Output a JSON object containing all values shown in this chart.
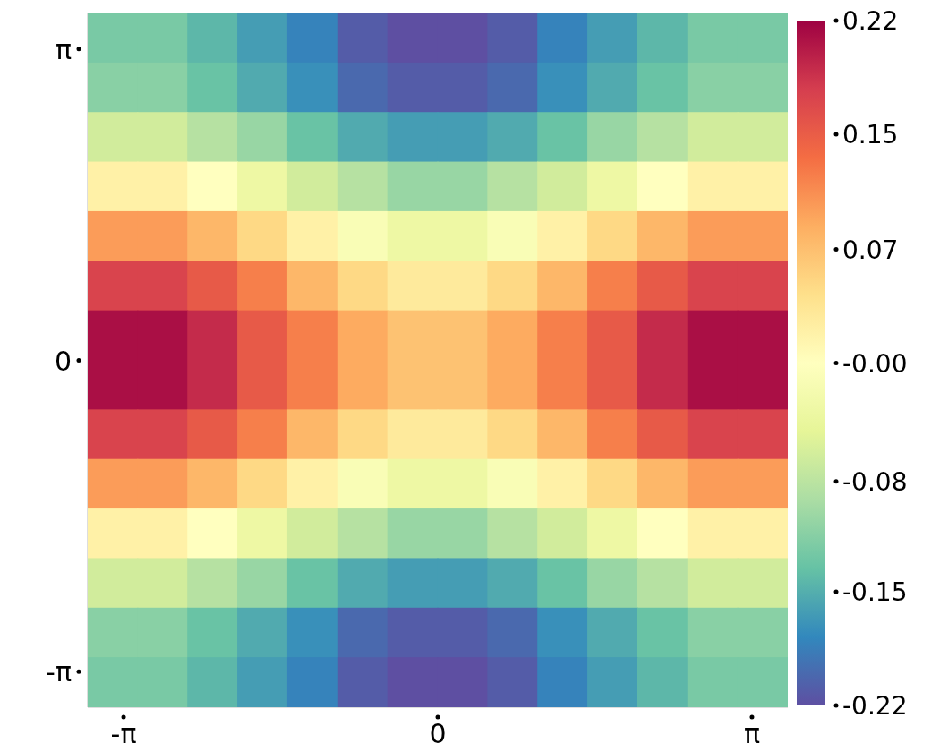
{
  "chart_data": {
    "type": "heatmap",
    "x": [
      -3.25,
      -2.75,
      -2.25,
      -1.75,
      -1.25,
      -0.75,
      -0.25,
      0.25,
      0.75,
      1.25,
      1.75,
      2.25,
      2.75,
      3.25
    ],
    "y": [
      3.25,
      2.75,
      2.25,
      1.75,
      1.25,
      0.75,
      0.25,
      -0.25,
      -0.75,
      -1.25,
      -1.75,
      -2.25,
      -2.75,
      -3.25
    ],
    "cells": [
      [
        -0.12,
        -0.12,
        -0.14,
        -0.16,
        -0.18,
        -0.21,
        -0.22,
        -0.22,
        -0.21,
        -0.18,
        -0.16,
        -0.14,
        -0.12,
        -0.12
      ],
      [
        -0.11,
        -0.11,
        -0.13,
        -0.15,
        -0.17,
        -0.2,
        -0.21,
        -0.21,
        -0.2,
        -0.17,
        -0.15,
        -0.13,
        -0.11,
        -0.11
      ],
      [
        -0.06,
        -0.06,
        -0.08,
        -0.1,
        -0.13,
        -0.15,
        -0.16,
        -0.16,
        -0.15,
        -0.13,
        -0.1,
        -0.08,
        -0.06,
        -0.06
      ],
      [
        0.02,
        0.02,
        0.0,
        -0.03,
        -0.06,
        -0.08,
        -0.1,
        -0.1,
        -0.08,
        -0.06,
        -0.03,
        0.0,
        0.02,
        0.02
      ],
      [
        0.1,
        0.1,
        0.08,
        0.05,
        0.02,
        -0.01,
        -0.03,
        -0.03,
        -0.01,
        0.02,
        0.05,
        0.08,
        0.1,
        0.1
      ],
      [
        0.17,
        0.17,
        0.15,
        0.12,
        0.08,
        0.05,
        0.03,
        0.03,
        0.05,
        0.08,
        0.12,
        0.15,
        0.17,
        0.17
      ],
      [
        0.21,
        0.21,
        0.19,
        0.15,
        0.12,
        0.09,
        0.07,
        0.07,
        0.09,
        0.12,
        0.15,
        0.19,
        0.21,
        0.21
      ],
      [
        0.21,
        0.21,
        0.19,
        0.15,
        0.12,
        0.09,
        0.07,
        0.07,
        0.09,
        0.12,
        0.15,
        0.19,
        0.21,
        0.21
      ],
      [
        0.17,
        0.17,
        0.15,
        0.12,
        0.08,
        0.05,
        0.03,
        0.03,
        0.05,
        0.08,
        0.12,
        0.15,
        0.17,
        0.17
      ],
      [
        0.1,
        0.1,
        0.08,
        0.05,
        0.02,
        -0.01,
        -0.03,
        -0.03,
        -0.01,
        0.02,
        0.05,
        0.08,
        0.1,
        0.1
      ],
      [
        0.02,
        0.02,
        0.0,
        -0.03,
        -0.06,
        -0.08,
        -0.1,
        -0.1,
        -0.08,
        -0.06,
        -0.03,
        0.0,
        0.02,
        0.02
      ],
      [
        -0.06,
        -0.06,
        -0.08,
        -0.1,
        -0.13,
        -0.15,
        -0.16,
        -0.16,
        -0.15,
        -0.13,
        -0.1,
        -0.08,
        -0.06,
        -0.06
      ],
      [
        -0.11,
        -0.11,
        -0.13,
        -0.15,
        -0.17,
        -0.2,
        -0.21,
        -0.21,
        -0.2,
        -0.17,
        -0.15,
        -0.13,
        -0.11,
        -0.11
      ],
      [
        -0.12,
        -0.12,
        -0.14,
        -0.16,
        -0.18,
        -0.21,
        -0.22,
        -0.22,
        -0.21,
        -0.18,
        -0.16,
        -0.14,
        -0.12,
        -0.12
      ]
    ],
    "xlim": [
      -3.5,
      3.5
    ],
    "ylim": [
      -3.5,
      3.5
    ],
    "xticks": [
      {
        "value": -3.1416,
        "label": "-π"
      },
      0,
      {
        "value": 3.1416,
        "label": "π"
      }
    ],
    "yticks": [
      {
        "value": -3.1416,
        "label": "-π"
      },
      0,
      {
        "value": 3.1416,
        "label": "π"
      }
    ],
    "clim": [
      -0.22,
      0.22
    ],
    "cticks": [
      0.22,
      {
        "value": 0.147,
        "label": "0.15"
      },
      {
        "value": 0.073,
        "label": "0.07"
      },
      {
        "value": 0,
        "label": "-0.00"
      },
      {
        "value": -0.076,
        "label": "-0.08"
      },
      {
        "value": -0.147,
        "label": "-0.15"
      },
      -0.22
    ]
  }
}
